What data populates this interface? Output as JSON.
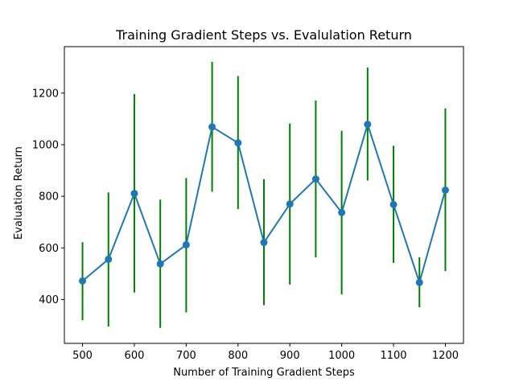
{
  "chart_data": {
    "type": "line",
    "title": "Training Gradient Steps vs. Evalulation Return",
    "xlabel": "Number of Training Gradient Steps",
    "ylabel": "Evaluation Return",
    "xlim": [
      465,
      1235
    ],
    "ylim": [
      230,
      1380
    ],
    "xticks": [
      500,
      600,
      700,
      800,
      900,
      1000,
      1100,
      1200
    ],
    "yticks": [
      400,
      600,
      800,
      1000,
      1200
    ],
    "grid": false,
    "series": [
      {
        "x": [
          500,
          550,
          600,
          650,
          700,
          750,
          800,
          850,
          900,
          950,
          1000,
          1050,
          1100,
          1150,
          1200
        ],
        "y": [
          472,
          556,
          811,
          538,
          612,
          1069,
          1007,
          621,
          770,
          867,
          737,
          1079,
          768,
          466,
          824
        ],
        "yerr_low": [
          320,
          295,
          427,
          290,
          350,
          818,
          750,
          378,
          458,
          563,
          420,
          861,
          542,
          370,
          510
        ],
        "yerr_high": [
          622,
          815,
          1196,
          787,
          871,
          1321,
          1266,
          866,
          1082,
          1171,
          1054,
          1299,
          996,
          564,
          1141
        ],
        "line_color": "#1f77b4",
        "marker_color": "#1f77b4",
        "errorbar_color": "#008000"
      }
    ]
  }
}
